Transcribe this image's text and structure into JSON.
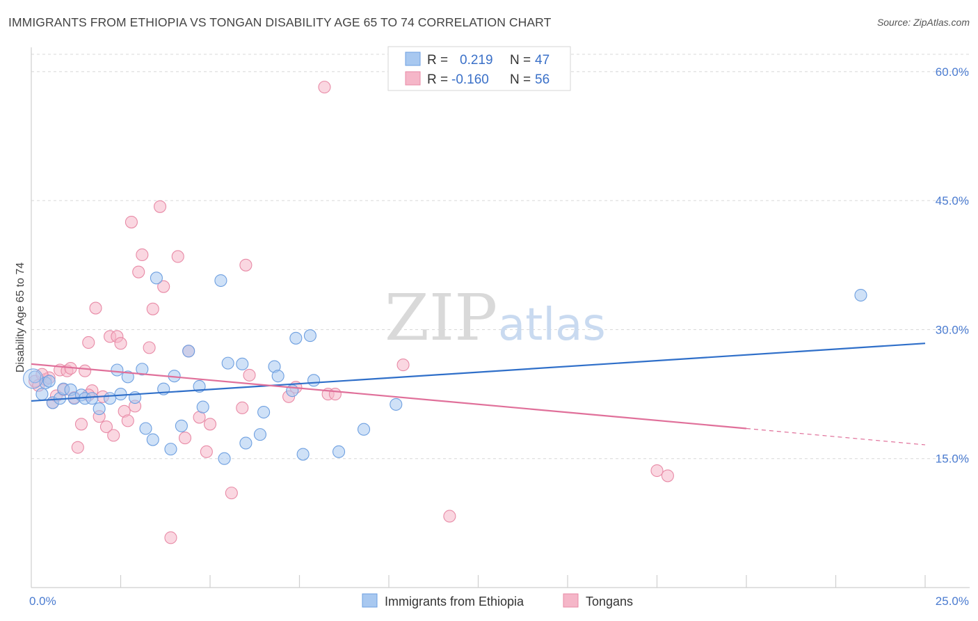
{
  "title": "IMMIGRANTS FROM ETHIOPIA VS TONGAN DISABILITY AGE 65 TO 74 CORRELATION CHART",
  "source": "Source: ZipAtlas.com",
  "watermark": {
    "zip": "ZIP",
    "atlas": "atlas"
  },
  "legend": {
    "r_label": "R =",
    "n_label": "N =",
    "rows": [
      {
        "r": "0.219",
        "n": "47"
      },
      {
        "r": "-0.160",
        "n": "56"
      }
    ]
  },
  "colors": {
    "blue_fill": "#a8c8f0",
    "blue_stroke": "#6d9fe0",
    "blue_line": "#2f6fc9",
    "pink_fill": "#f5b6c8",
    "pink_stroke": "#e88aa6",
    "pink_line": "#e0709a",
    "grid": "#d8d8d8",
    "axis_text": "#4a7bd0"
  },
  "chart_data": {
    "type": "scatter",
    "title": "IMMIGRANTS FROM ETHIOPIA VS TONGAN DISABILITY AGE 65 TO 74 CORRELATION CHART",
    "xlabel": "",
    "ylabel": "Disability Age 65 to 74",
    "xlim": [
      0,
      25
    ],
    "ylim": [
      0,
      62.5
    ],
    "x_tick_labels": [
      "0.0%",
      "25.0%"
    ],
    "y_ticks": [
      15,
      30,
      45,
      60
    ],
    "y_tick_labels": [
      "15.0%",
      "30.0%",
      "45.0%",
      "60.0%"
    ],
    "grid": true,
    "legend_placement": "top-center",
    "series": [
      {
        "name": "Immigrants from Ethiopia",
        "color": "#6d9fe0",
        "trend": {
          "x0": 0,
          "y0": 21.7,
          "x1": 25,
          "y1": 28.4
        },
        "points": [
          [
            0.1,
            24.5
          ],
          [
            0.3,
            22.5
          ],
          [
            0.4,
            23.8
          ],
          [
            0.5,
            24.0
          ],
          [
            0.6,
            21.5
          ],
          [
            0.8,
            22.0
          ],
          [
            0.9,
            23.1
          ],
          [
            1.1,
            23.0
          ],
          [
            1.2,
            22.0
          ],
          [
            1.4,
            22.4
          ],
          [
            1.5,
            22.0
          ],
          [
            1.7,
            22.0
          ],
          [
            1.9,
            20.8
          ],
          [
            2.2,
            22.0
          ],
          [
            2.4,
            25.3
          ],
          [
            2.5,
            22.5
          ],
          [
            2.7,
            24.5
          ],
          [
            2.9,
            22.1
          ],
          [
            3.1,
            25.4
          ],
          [
            3.2,
            18.5
          ],
          [
            3.4,
            17.2
          ],
          [
            3.5,
            36.0
          ],
          [
            3.7,
            23.1
          ],
          [
            3.9,
            16.1
          ],
          [
            4.0,
            24.6
          ],
          [
            4.2,
            18.8
          ],
          [
            4.4,
            27.5
          ],
          [
            4.7,
            23.4
          ],
          [
            4.8,
            21.0
          ],
          [
            5.3,
            35.7
          ],
          [
            5.4,
            15.0
          ],
          [
            5.5,
            26.1
          ],
          [
            5.9,
            26.0
          ],
          [
            6.0,
            16.8
          ],
          [
            6.4,
            17.8
          ],
          [
            6.5,
            20.4
          ],
          [
            6.8,
            25.7
          ],
          [
            6.9,
            24.6
          ],
          [
            7.3,
            22.9
          ],
          [
            7.4,
            29.0
          ],
          [
            7.6,
            15.5
          ],
          [
            7.8,
            29.3
          ],
          [
            7.9,
            24.1
          ],
          [
            8.6,
            15.8
          ],
          [
            9.3,
            18.4
          ],
          [
            10.2,
            21.3
          ],
          [
            23.2,
            34.0
          ]
        ]
      },
      {
        "name": "Tongans",
        "color": "#e88aa6",
        "trend": {
          "x0": 0,
          "y0": 26.0,
          "x1": 20.0,
          "y1": 18.5
        },
        "trend_dashed": {
          "x0": 20.0,
          "y0": 18.5,
          "x1": 25,
          "y1": 16.6
        },
        "points": [
          [
            0.1,
            24.0
          ],
          [
            0.2,
            23.5
          ],
          [
            0.4,
            24.2
          ],
          [
            0.5,
            24.4
          ],
          [
            0.6,
            21.5
          ],
          [
            0.7,
            22.3
          ],
          [
            0.8,
            25.3
          ],
          [
            0.9,
            23.0
          ],
          [
            1.0,
            25.2
          ],
          [
            1.1,
            25.5
          ],
          [
            1.2,
            22.1
          ],
          [
            1.3,
            16.3
          ],
          [
            1.4,
            19.0
          ],
          [
            1.5,
            25.2
          ],
          [
            1.6,
            28.5
          ],
          [
            1.7,
            22.9
          ],
          [
            1.8,
            32.5
          ],
          [
            1.9,
            19.9
          ],
          [
            2.0,
            22.2
          ],
          [
            2.1,
            18.7
          ],
          [
            2.2,
            29.2
          ],
          [
            2.3,
            17.7
          ],
          [
            2.4,
            29.2
          ],
          [
            2.5,
            28.4
          ],
          [
            2.6,
            20.5
          ],
          [
            2.7,
            19.4
          ],
          [
            2.8,
            42.5
          ],
          [
            2.9,
            21.1
          ],
          [
            3.0,
            36.7
          ],
          [
            3.1,
            38.7
          ],
          [
            3.3,
            27.9
          ],
          [
            3.4,
            32.4
          ],
          [
            3.6,
            44.3
          ],
          [
            3.7,
            35.0
          ],
          [
            3.9,
            5.8
          ],
          [
            4.1,
            38.5
          ],
          [
            4.3,
            17.4
          ],
          [
            4.4,
            27.5
          ],
          [
            4.7,
            19.8
          ],
          [
            4.9,
            15.8
          ],
          [
            5.0,
            19.0
          ],
          [
            5.6,
            11.0
          ],
          [
            5.9,
            20.9
          ],
          [
            6.0,
            37.5
          ],
          [
            6.1,
            24.7
          ],
          [
            7.2,
            22.2
          ],
          [
            7.4,
            23.3
          ],
          [
            8.2,
            58.2
          ],
          [
            8.3,
            22.5
          ],
          [
            8.5,
            22.5
          ],
          [
            10.4,
            25.9
          ],
          [
            11.7,
            8.3
          ],
          [
            17.5,
            13.6
          ],
          [
            17.8,
            13.0
          ],
          [
            0.3,
            24.8
          ],
          [
            1.6,
            22.4
          ]
        ]
      }
    ]
  }
}
